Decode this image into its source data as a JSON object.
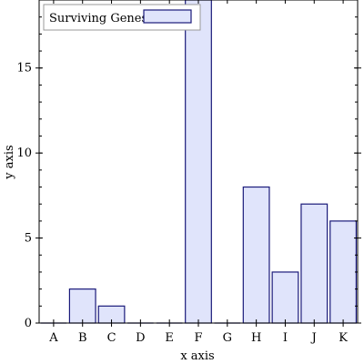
{
  "chart_data": {
    "type": "bar",
    "categories": [
      "A",
      "B",
      "C",
      "D",
      "E",
      "F",
      "G",
      "H",
      "I",
      "J",
      "K"
    ],
    "series": [
      {
        "name": "Surviving Genes",
        "values": [
          0,
          2,
          1,
          0,
          0,
          20,
          0,
          8,
          3,
          7,
          6
        ],
        "color": "#e0e4fb",
        "stroke": "#1a1a7a"
      }
    ],
    "xlabel": "x axis",
    "ylabel": "y axis",
    "ylim": [
      0,
      19
    ],
    "yticks": [
      0,
      5,
      10,
      15
    ],
    "y_minor_step": 1,
    "grid": false,
    "legend_position": "top-left"
  }
}
